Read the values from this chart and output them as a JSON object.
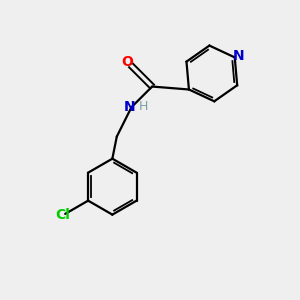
{
  "background_color": "#efefef",
  "bond_color": "#000000",
  "atom_colors": {
    "O": "#ff0000",
    "N_amide": "#0000cc",
    "N_pyridine": "#0000cc",
    "Cl": "#00cc00",
    "H": "#7aa0a0",
    "C": "#000000"
  },
  "figsize": [
    3.0,
    3.0
  ],
  "dpi": 100,
  "xlim": [
    0,
    10
  ],
  "ylim": [
    0,
    10
  ]
}
